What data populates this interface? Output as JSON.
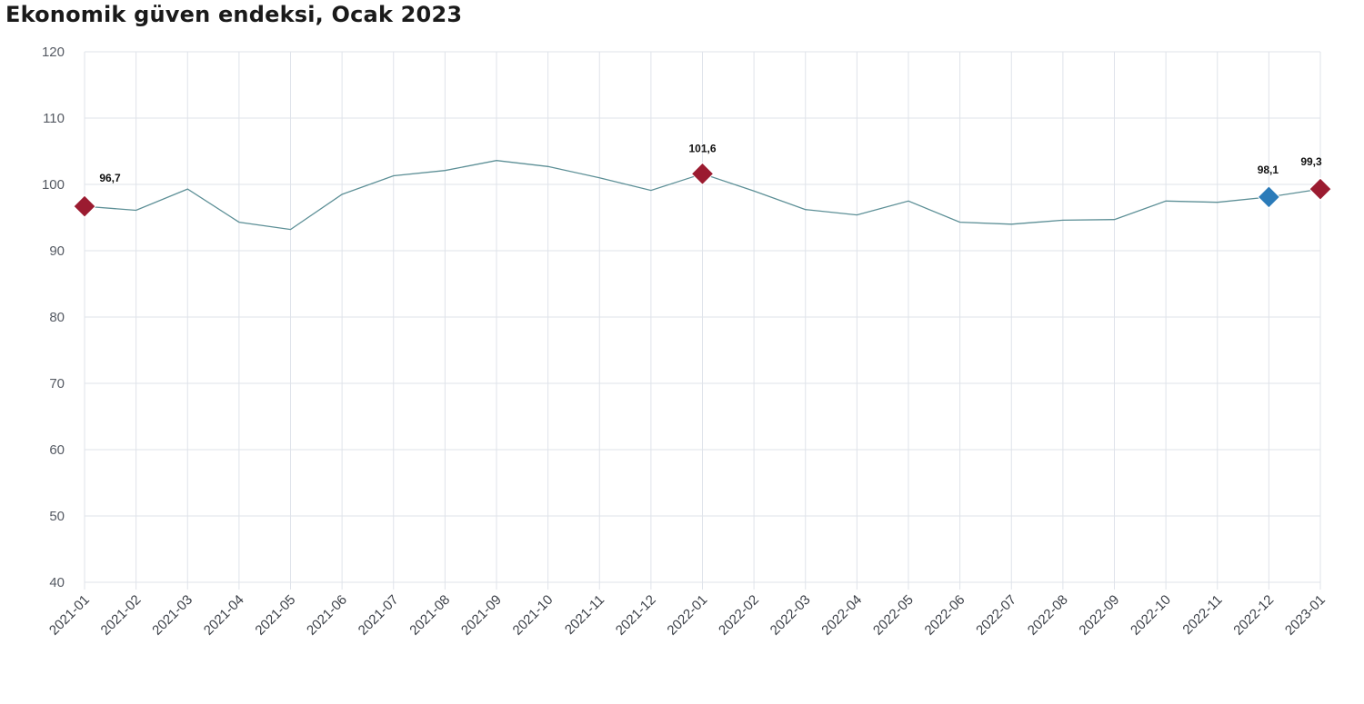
{
  "title": "Ekonomik güven endeksi, Ocak 2023",
  "colors": {
    "line": "#5c8f96",
    "marker_primary": "#9b1b30",
    "marker_secondary": "#2b7bb9",
    "grid": "#dfe3ea"
  },
  "chart_data": {
    "type": "line",
    "title": "Ekonomik güven endeksi, Ocak 2023",
    "xlabel": "",
    "ylabel": "",
    "ylim": [
      40,
      120
    ],
    "yticks": [
      40,
      50,
      60,
      70,
      80,
      90,
      100,
      110,
      120
    ],
    "grid": true,
    "legend": "none",
    "categories": [
      "2021-01",
      "2021-02",
      "2021-03",
      "2021-04",
      "2021-05",
      "2021-06",
      "2021-07",
      "2021-08",
      "2021-09",
      "2021-10",
      "2021-11",
      "2021-12",
      "2022-01",
      "2022-02",
      "2022-03",
      "2022-04",
      "2022-05",
      "2022-06",
      "2022-07",
      "2022-08",
      "2022-09",
      "2022-10",
      "2022-11",
      "2022-12",
      "2023-01"
    ],
    "series": [
      {
        "values": [
          96.7,
          96.1,
          99.3,
          94.3,
          93.2,
          98.5,
          101.3,
          102.1,
          103.6,
          102.7,
          101.0,
          99.1,
          101.6,
          99.0,
          96.2,
          95.4,
          97.5,
          94.3,
          94.0,
          94.6,
          94.7,
          97.5,
          97.3,
          98.1,
          99.3
        ]
      }
    ],
    "highlighted_points": [
      {
        "category": "2021-01",
        "value": 96.7,
        "label": "96,7",
        "marker": "marker_primary"
      },
      {
        "category": "2022-01",
        "value": 101.6,
        "label": "101,6",
        "marker": "marker_primary"
      },
      {
        "category": "2022-12",
        "value": 98.1,
        "label": "98,1",
        "marker": "marker_secondary"
      },
      {
        "category": "2023-01",
        "value": 99.3,
        "label": "99,3",
        "marker": "marker_primary"
      }
    ]
  }
}
